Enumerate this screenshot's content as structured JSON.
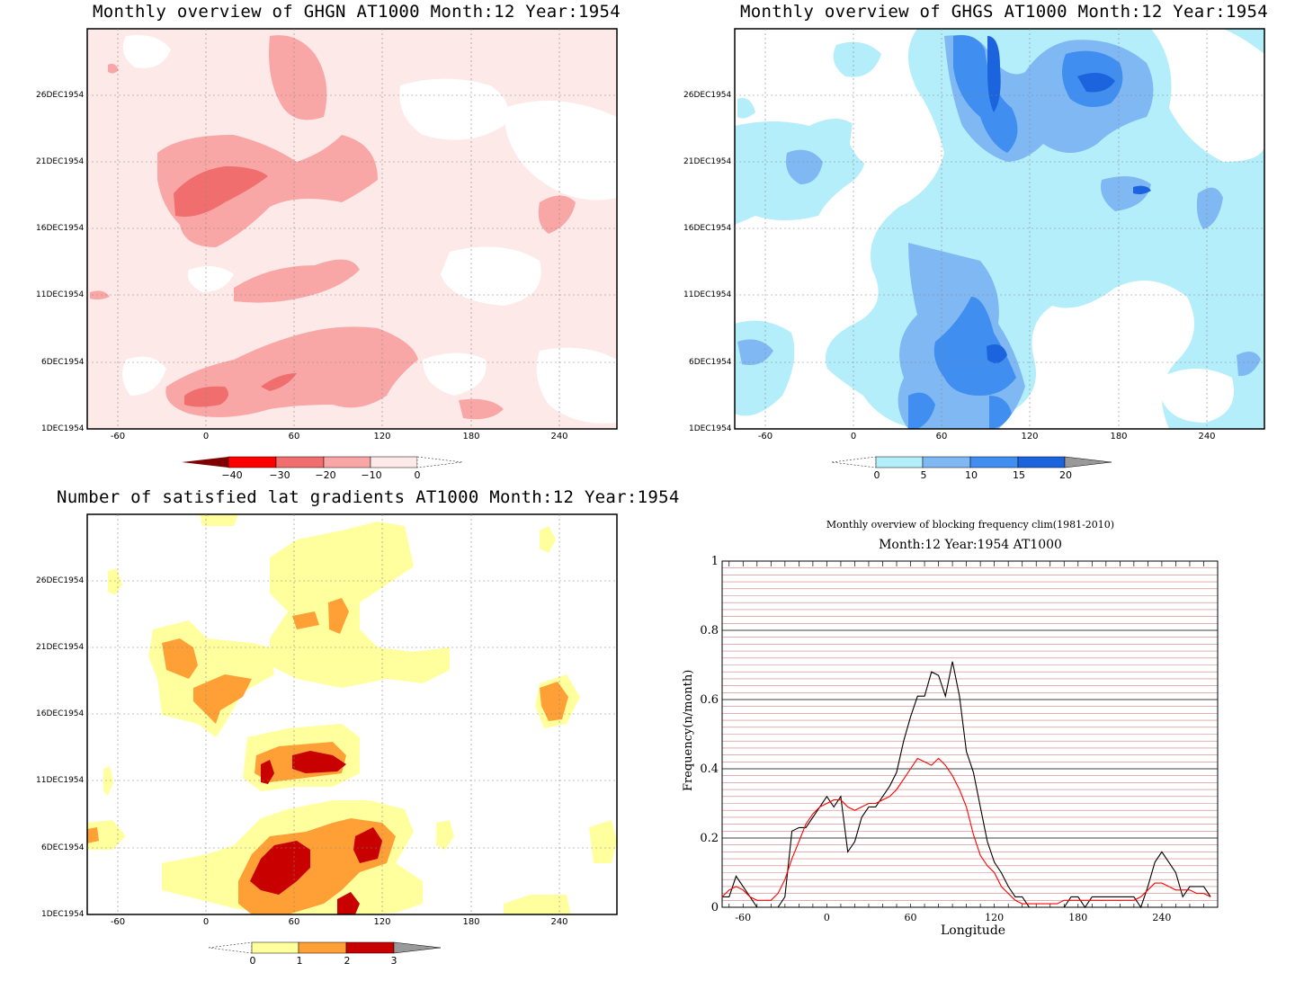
{
  "panels": {
    "ghgn": {
      "title": "Monthly overview of GHGN AT1000 Month:12 Year:1954",
      "colorbar_labels": [
        "−40",
        "−30",
        "−20",
        "−10",
        "0"
      ],
      "colors": {
        "c1": "#fde9e8",
        "c2": "#f9a7a6",
        "c3": "#f06e6e",
        "c4": "#e83232",
        "c5": "#ff0000",
        "c6": "#800000"
      }
    },
    "ghgs": {
      "title": "Monthly overview of GHGS AT1000 Month:12 Year:1954",
      "colorbar_labels": [
        "0",
        "5",
        "10",
        "15",
        "20"
      ],
      "colors": {
        "c1": "#b3eefa",
        "c2": "#7fb8f2",
        "c3": "#3f8ef0",
        "c4": "#1b64dd",
        "c5": "#999999"
      }
    },
    "lat": {
      "title": "Number of satisfied lat gradients AT1000 Month:12 Year:1954",
      "colorbar_labels": [
        "0",
        "1",
        "2",
        "3"
      ],
      "colors": {
        "c1": "#ffff9e",
        "c2": "#ffa037",
        "c3": "#c80000",
        "c4": "#999999"
      }
    }
  },
  "shared_axes": {
    "y_ticks": [
      "26DEC1954",
      "21DEC1954",
      "16DEC1954",
      "11DEC1954",
      "6DEC1954",
      "1DEC1954"
    ],
    "x_ticks": [
      "-60",
      "0",
      "60",
      "120",
      "180",
      "240"
    ]
  },
  "chart_data": {
    "type": "line",
    "title": "Monthly overview of blocking frequency clim(1981-2010)",
    "subtitle": "Month:12 Year:1954  AT1000",
    "xlabel": "Longitude",
    "ylabel": "Frequency(n/month)",
    "xlim": [
      -75,
      280
    ],
    "ylim": [
      0,
      1
    ],
    "x_ticks": [
      "-60",
      "0",
      "60",
      "120",
      "180",
      "240"
    ],
    "y_ticks": [
      "0",
      "0.2",
      "0.4",
      "0.6",
      "0.8",
      "1"
    ],
    "grid": true,
    "x": [
      -75,
      -70,
      -65,
      -60,
      -55,
      -50,
      -45,
      -40,
      -35,
      -30,
      -25,
      -20,
      -15,
      -10,
      -5,
      0,
      5,
      10,
      15,
      20,
      25,
      30,
      35,
      40,
      45,
      50,
      55,
      60,
      65,
      70,
      75,
      80,
      85,
      90,
      95,
      100,
      105,
      110,
      115,
      120,
      125,
      130,
      135,
      140,
      145,
      150,
      155,
      160,
      165,
      170,
      175,
      180,
      185,
      190,
      195,
      200,
      205,
      210,
      215,
      220,
      225,
      230,
      235,
      240,
      245,
      250,
      255,
      260,
      265,
      270,
      275
    ],
    "series": [
      {
        "color": "#000000",
        "values": [
          0.03,
          0.03,
          0.09,
          0.06,
          0.03,
          0,
          0,
          0,
          0,
          0.03,
          0.22,
          0.23,
          0.23,
          0.26,
          0.29,
          0.32,
          0.29,
          0.32,
          0.16,
          0.19,
          0.26,
          0.29,
          0.29,
          0.32,
          0.35,
          0.39,
          0.48,
          0.55,
          0.61,
          0.61,
          0.68,
          0.67,
          0.61,
          0.71,
          0.61,
          0.45,
          0.39,
          0.29,
          0.19,
          0.13,
          0.1,
          0.06,
          0.03,
          0.03,
          0,
          0,
          0,
          0,
          0,
          0,
          0.03,
          0.03,
          0,
          0.03,
          0.03,
          0.03,
          0.03,
          0.03,
          0.03,
          0.03,
          0,
          0.06,
          0.13,
          0.16,
          0.13,
          0.1,
          0.03,
          0.06,
          0.06,
          0.06,
          0.03
        ]
      },
      {
        "color": "#ff0000",
        "values": [
          0.03,
          0.05,
          0.06,
          0.05,
          0.03,
          0.02,
          0.02,
          0.02,
          0.04,
          0.08,
          0.14,
          0.19,
          0.24,
          0.27,
          0.29,
          0.3,
          0.31,
          0.31,
          0.29,
          0.28,
          0.29,
          0.3,
          0.3,
          0.31,
          0.32,
          0.34,
          0.37,
          0.4,
          0.43,
          0.42,
          0.41,
          0.43,
          0.41,
          0.38,
          0.34,
          0.29,
          0.21,
          0.15,
          0.12,
          0.1,
          0.06,
          0.04,
          0.02,
          0.01,
          0.01,
          0.01,
          0.01,
          0.01,
          0.01,
          0.02,
          0.02,
          0.02,
          0.02,
          0.02,
          0.02,
          0.02,
          0.02,
          0.02,
          0.02,
          0.02,
          0.03,
          0.05,
          0.07,
          0.07,
          0.06,
          0.05,
          0.05,
          0.05,
          0.04,
          0.04,
          0.03
        ]
      }
    ]
  }
}
